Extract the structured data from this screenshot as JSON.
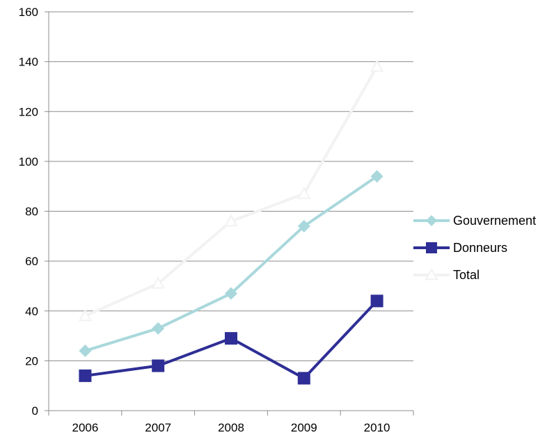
{
  "chart_data": {
    "type": "line",
    "title": "",
    "xlabel": "",
    "ylabel": "",
    "categories": [
      "2006",
      "2007",
      "2008",
      "2009",
      "2010"
    ],
    "ylim": [
      0,
      160
    ],
    "yticks": [
      0,
      20,
      40,
      60,
      80,
      100,
      120,
      140,
      160
    ],
    "grid": true,
    "legend_position": "right",
    "series": [
      {
        "name": "Gouvernement",
        "values": [
          24,
          33,
          47,
          74,
          94
        ],
        "color": "#a9d8dc",
        "marker": "diamond"
      },
      {
        "name": "Donneurs",
        "values": [
          14,
          18,
          29,
          13,
          44
        ],
        "color": "#2e2e96",
        "marker": "square"
      },
      {
        "name": "Total",
        "values": [
          38,
          51,
          76,
          87,
          138
        ],
        "color": "#f2f2f2",
        "marker": "triangle"
      }
    ]
  }
}
